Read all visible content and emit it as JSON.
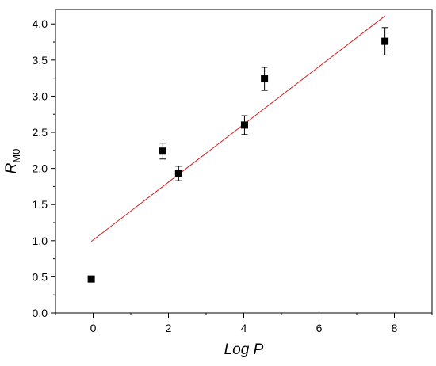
{
  "chart_data": {
    "type": "scatter",
    "xlabel": "Log P",
    "ylabel": {
      "main": "R",
      "subscript": "M0"
    },
    "xlim": [
      -1,
      9
    ],
    "ylim": [
      0,
      4.2
    ],
    "x_ticks": [
      0,
      2,
      4,
      6,
      8
    ],
    "x_tick_labels": [
      "0",
      "2",
      "4",
      "6",
      "8"
    ],
    "y_ticks": [
      0,
      0.5,
      1,
      1.5,
      2,
      2.5,
      3,
      3.5,
      4
    ],
    "y_tick_labels": [
      "0.0",
      "0.5",
      "1.0",
      "1.5",
      "2.0",
      "2.5",
      "3.0",
      "3.5",
      "4.0"
    ],
    "grid": false,
    "points": [
      {
        "x": -0.05,
        "y": 0.47,
        "err": 0
      },
      {
        "x": 1.85,
        "y": 2.24,
        "err": 0.11
      },
      {
        "x": 2.27,
        "y": 1.93,
        "err": 0.1
      },
      {
        "x": 4.02,
        "y": 2.6,
        "err": 0.13
      },
      {
        "x": 4.55,
        "y": 3.24,
        "err": 0.16
      },
      {
        "x": 7.75,
        "y": 3.76,
        "err": 0.19
      }
    ],
    "fit_line": {
      "x": [
        -0.05,
        7.75
      ],
      "y": [
        0.99,
        4.11
      ],
      "color": "#d42020"
    },
    "marker_color": "#000000"
  }
}
